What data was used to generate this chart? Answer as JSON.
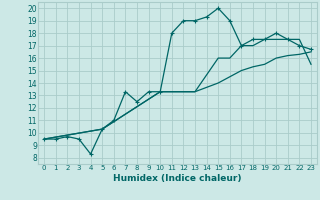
{
  "xlabel": "Humidex (Indice chaleur)",
  "ylabel": "",
  "bg_color": "#cce8e6",
  "grid_color": "#aaccca",
  "line_color": "#006666",
  "xlim": [
    -0.5,
    23.5
  ],
  "ylim": [
    7.5,
    20.5
  ],
  "xticks": [
    0,
    1,
    2,
    3,
    4,
    5,
    6,
    7,
    8,
    9,
    10,
    11,
    12,
    13,
    14,
    15,
    16,
    17,
    18,
    19,
    20,
    21,
    22,
    23
  ],
  "yticks": [
    8,
    9,
    10,
    11,
    12,
    13,
    14,
    15,
    16,
    17,
    18,
    19,
    20
  ],
  "line1_x": [
    0,
    1,
    2,
    3,
    4,
    5,
    6,
    7,
    8,
    9,
    10,
    11,
    12,
    13,
    14,
    15,
    16,
    17,
    18,
    19,
    20,
    21,
    22,
    23
  ],
  "line1_y": [
    9.5,
    9.5,
    9.7,
    9.5,
    8.3,
    10.3,
    11.0,
    13.3,
    12.5,
    13.3,
    13.3,
    18.0,
    19.0,
    19.0,
    19.3,
    20.0,
    19.0,
    17.0,
    17.5,
    17.5,
    18.0,
    17.5,
    17.0,
    16.7
  ],
  "line2_x": [
    0,
    5,
    10,
    13,
    15,
    16,
    17,
    18,
    19,
    20,
    21,
    22,
    23
  ],
  "line2_y": [
    9.5,
    10.3,
    13.3,
    13.3,
    16.0,
    16.0,
    17.0,
    17.0,
    17.5,
    17.5,
    17.5,
    17.5,
    15.5
  ],
  "line3_x": [
    0,
    5,
    10,
    13,
    15,
    16,
    17,
    18,
    19,
    20,
    21,
    22,
    23
  ],
  "line3_y": [
    9.5,
    10.3,
    13.3,
    13.3,
    14.0,
    14.5,
    15.0,
    15.3,
    15.5,
    16.0,
    16.2,
    16.3,
    16.5
  ],
  "marker_style": "+",
  "marker_size": 3,
  "linewidth": 0.9
}
